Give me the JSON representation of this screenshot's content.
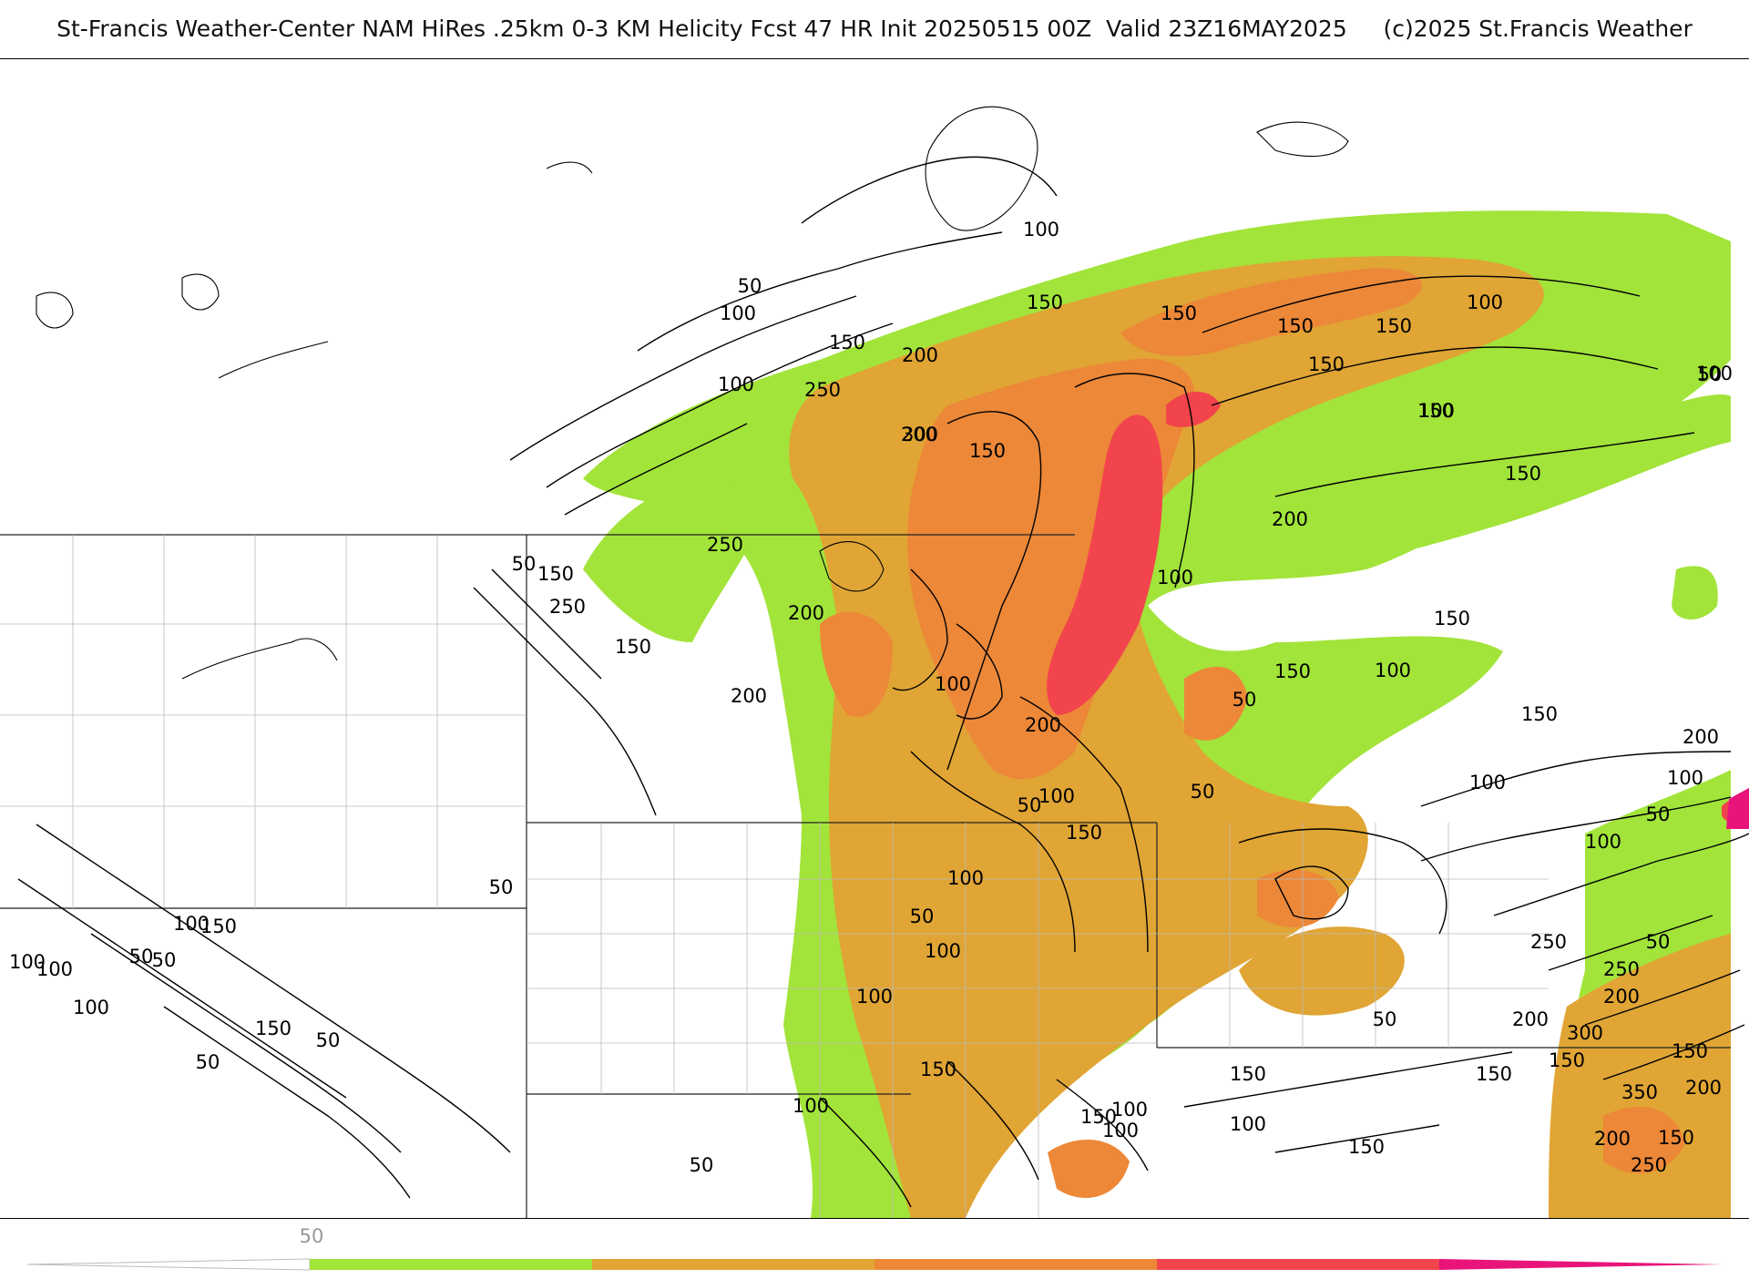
{
  "title": "St-Francis Weather-Center NAM HiRes .25km 0-3 KM Helicity Fcst 47 HR Init 20250515 00Z  Valid 23Z16MAY2025     (c)2025 St.Francis Weather",
  "map": {
    "field": "0-3 KM Helicity",
    "contour_labels": [
      "100",
      "50",
      "100",
      "150",
      "200",
      "150",
      "100",
      "250",
      "300",
      "200",
      "150",
      "150",
      "150",
      "150",
      "150",
      "100",
      "150",
      "100",
      "50",
      "100",
      "150",
      "250",
      "50",
      "150",
      "100",
      "200",
      "250",
      "150",
      "200",
      "100",
      "150",
      "50",
      "200",
      "100",
      "150",
      "200",
      "100",
      "150",
      "200",
      "100",
      "50",
      "50",
      "50",
      "100",
      "150",
      "100",
      "50",
      "100",
      "100",
      "150",
      "100",
      "100",
      "50",
      "50",
      "50",
      "100",
      "100",
      "150",
      "50",
      "50",
      "100",
      "50",
      "100",
      "150",
      "100",
      "150",
      "150",
      "50",
      "100",
      "150",
      "200",
      "100",
      "250",
      "300",
      "350",
      "150",
      "200",
      "150",
      "200",
      "250",
      "150",
      "200",
      "250",
      "150",
      "50"
    ]
  },
  "legend": {
    "label": "50",
    "colors": [
      "#ffffff",
      "#a2e43a",
      "#e0a534",
      "#ec8838",
      "#f2444c",
      "#e8147a"
    ]
  }
}
